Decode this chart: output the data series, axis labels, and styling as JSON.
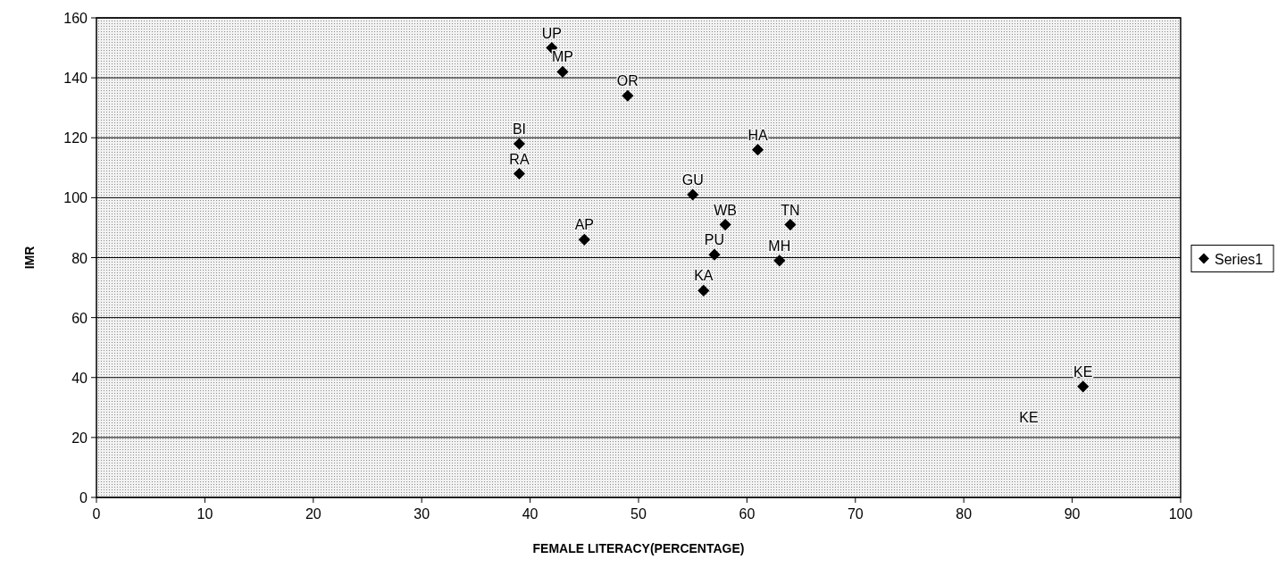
{
  "chart_data": {
    "type": "scatter",
    "xlabel": "FEMALE LITERACY(PERCENTAGE)",
    "ylabel": "IMR",
    "xlim": [
      0,
      100
    ],
    "xticks": [
      0,
      10,
      20,
      30,
      40,
      50,
      60,
      70,
      80,
      90,
      100
    ],
    "ylim": [
      0,
      160
    ],
    "yticks": [
      0,
      20,
      40,
      60,
      80,
      100,
      120,
      140,
      160
    ],
    "grid": "y",
    "legend": "right",
    "marker": "diamond",
    "series": [
      {
        "name": "Series1",
        "color": "#000000",
        "x": [
          42,
          43,
          49,
          39,
          39,
          61,
          55,
          58,
          64,
          45,
          57,
          63,
          56,
          91
        ],
        "values": [
          150,
          142,
          134,
          118,
          108,
          116,
          101,
          91,
          91,
          86,
          81,
          79,
          69,
          37
        ]
      }
    ],
    "annotations": [
      {
        "text": "UP",
        "x": 42,
        "y": 150
      },
      {
        "text": "MP",
        "x": 43,
        "y": 142
      },
      {
        "text": "OR",
        "x": 49,
        "y": 134
      },
      {
        "text": "BI",
        "x": 39,
        "y": 118
      },
      {
        "text": "RA",
        "x": 39,
        "y": 108
      },
      {
        "text": "HA",
        "x": 61,
        "y": 116
      },
      {
        "text": "GU",
        "x": 55,
        "y": 101
      },
      {
        "text": "WB",
        "x": 58,
        "y": 91
      },
      {
        "text": "TN",
        "x": 64,
        "y": 91
      },
      {
        "text": "AP",
        "x": 45,
        "y": 86
      },
      {
        "text": "PU",
        "x": 57,
        "y": 81
      },
      {
        "text": "MH",
        "x": 63,
        "y": 79
      },
      {
        "text": "KA",
        "x": 56,
        "y": 69
      },
      {
        "text": "KE",
        "x": 91,
        "y": 37
      },
      "KE"
    ]
  }
}
